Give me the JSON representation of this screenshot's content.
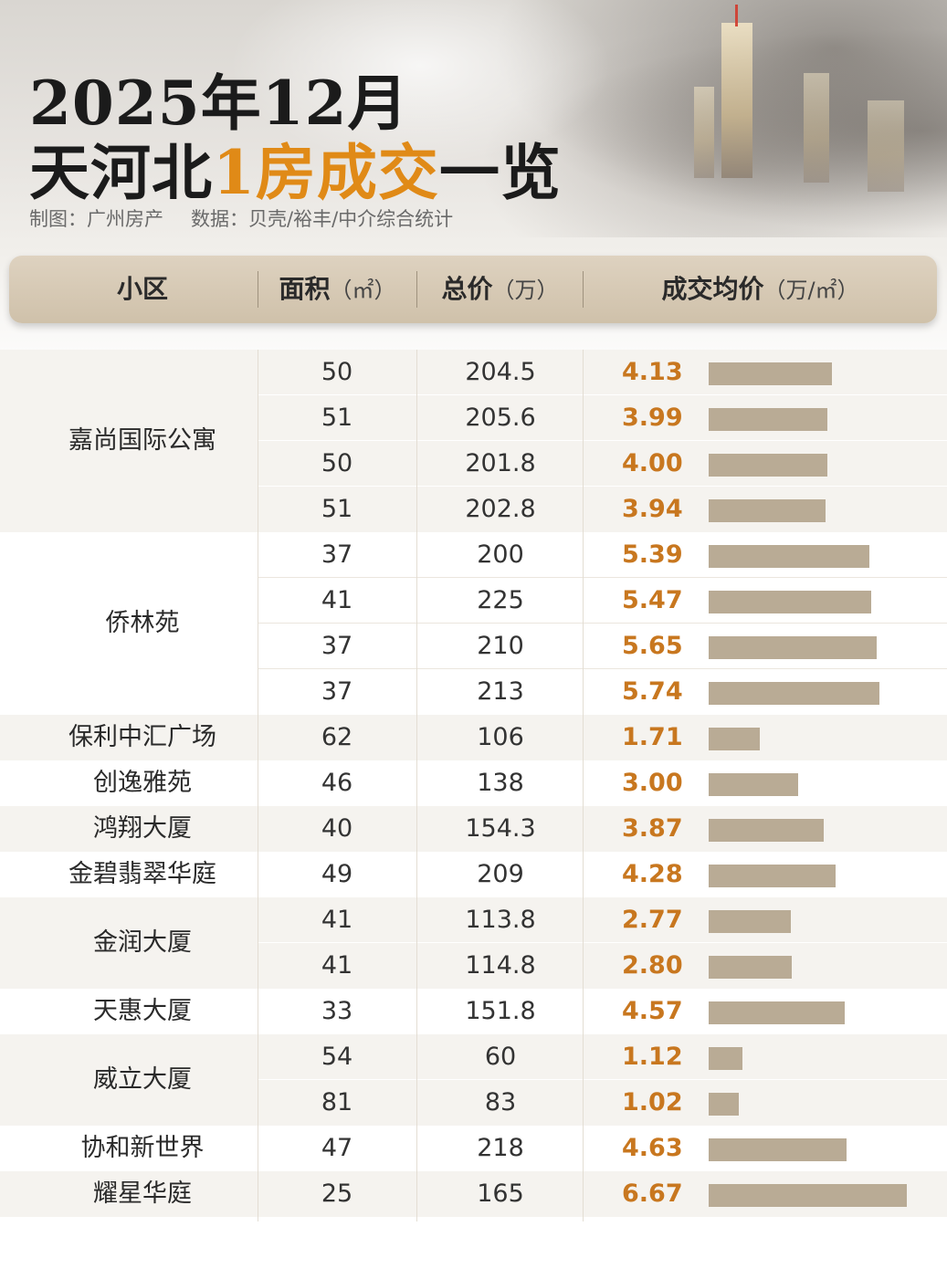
{
  "title": {
    "line1": "2025年12月",
    "line2_pre": "天河北",
    "line2_accent": "1房成交",
    "line2_post": "一览"
  },
  "credits": {
    "maker": "制图：广州房产",
    "source": "数据：贝壳/裕丰/中介综合统计"
  },
  "colors": {
    "accent": "#e08a17",
    "value_text": "#c8771f",
    "bar": "#b9ab95",
    "header_band": "#d6c9b5",
    "row_tint": "#f5f3ef"
  },
  "chart_data": {
    "type": "table",
    "columns": [
      {
        "label": "小区",
        "unit": ""
      },
      {
        "label": "面积",
        "unit": "（㎡）"
      },
      {
        "label": "总价",
        "unit": "（万）"
      },
      {
        "label": "成交均价",
        "unit": "（万/㎡）"
      }
    ],
    "bar_max": 7.0,
    "groups": [
      {
        "name": "嘉尚国际公寓",
        "rows": [
          {
            "area": "50",
            "price": "204.5",
            "avg": "4.13"
          },
          {
            "area": "51",
            "price": "205.6",
            "avg": "3.99"
          },
          {
            "area": "50",
            "price": "201.8",
            "avg": "4.00"
          },
          {
            "area": "51",
            "price": "202.8",
            "avg": "3.94"
          }
        ]
      },
      {
        "name": "侨林苑",
        "rows": [
          {
            "area": "37",
            "price": "200",
            "avg": "5.39"
          },
          {
            "area": "41",
            "price": "225",
            "avg": "5.47"
          },
          {
            "area": "37",
            "price": "210",
            "avg": "5.65"
          },
          {
            "area": "37",
            "price": "213",
            "avg": "5.74"
          }
        ]
      },
      {
        "name": "保利中汇广场",
        "rows": [
          {
            "area": "62",
            "price": "106",
            "avg": "1.71"
          }
        ]
      },
      {
        "name": "创逸雅苑",
        "rows": [
          {
            "area": "46",
            "price": "138",
            "avg": "3.00"
          }
        ]
      },
      {
        "name": "鸿翔大厦",
        "rows": [
          {
            "area": "40",
            "price": "154.3",
            "avg": "3.87"
          }
        ]
      },
      {
        "name": "金碧翡翠华庭",
        "rows": [
          {
            "area": "49",
            "price": "209",
            "avg": "4.28"
          }
        ]
      },
      {
        "name": "金润大厦",
        "rows": [
          {
            "area": "41",
            "price": "113.8",
            "avg": "2.77"
          },
          {
            "area": "41",
            "price": "114.8",
            "avg": "2.80"
          }
        ]
      },
      {
        "name": "天惠大厦",
        "rows": [
          {
            "area": "33",
            "price": "151.8",
            "avg": "4.57"
          }
        ]
      },
      {
        "name": "威立大厦",
        "rows": [
          {
            "area": "54",
            "price": "60",
            "avg": "1.12"
          },
          {
            "area": "81",
            "price": "83",
            "avg": "1.02"
          }
        ]
      },
      {
        "name": "协和新世界",
        "rows": [
          {
            "area": "47",
            "price": "218",
            "avg": "4.63"
          }
        ]
      },
      {
        "name": "耀星华庭",
        "rows": [
          {
            "area": "25",
            "price": "165",
            "avg": "6.67"
          }
        ]
      }
    ]
  }
}
